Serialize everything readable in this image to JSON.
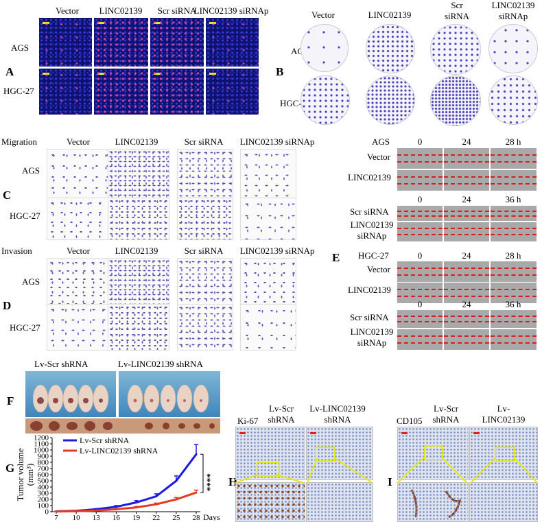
{
  "panel_letters": {
    "a": "A",
    "b": "B",
    "c": "C",
    "d": "D",
    "e": "E",
    "f": "F",
    "g": "G",
    "h": "H",
    "i": "I"
  },
  "panel_a": {
    "col_labels": [
      "Vector",
      "LINC02139",
      "Scr siRNA",
      "LINC02139 siRNAp"
    ],
    "row_labels": [
      "AGS",
      "HGC-27"
    ]
  },
  "panel_b": {
    "col_labels": [
      "Vector",
      "LINC02139",
      "Scr\nsiRNA",
      "LINC02139\nsiRNAp"
    ],
    "row_labels": [
      "AGS",
      "HGC-27"
    ]
  },
  "panel_c": {
    "title": "Migration",
    "col_labels": [
      "Vector",
      "LINC02139",
      "Scr siRNA",
      "LINC02139 siRNAp"
    ],
    "row_labels": [
      "AGS",
      "HGC-27"
    ]
  },
  "panel_d": {
    "title": "Invasion",
    "col_labels": [
      "Vector",
      "LINC02139",
      "Scr siRNA",
      "LINC02139 siRNAp"
    ],
    "row_labels": [
      "AGS",
      "HGC-27"
    ]
  },
  "panel_e": {
    "blocks": [
      {
        "cell": "AGS",
        "times": [
          "0",
          "24",
          "28 h"
        ],
        "rows": [
          "Vector",
          "LINC02139"
        ]
      },
      {
        "cell": "",
        "times": [
          "0",
          "24",
          "36 h"
        ],
        "rows": [
          "Scr siRNA",
          "LINC02139\nsiRNAp"
        ]
      },
      {
        "cell": "HGC-27",
        "times": [
          "0",
          "24",
          "28 h"
        ],
        "rows": [
          "Vector",
          "LINC02139"
        ]
      },
      {
        "cell": "",
        "times": [
          "0",
          "24",
          "36 h"
        ],
        "rows": [
          "Scr siRNA",
          "LINC02139\nsiRNAp"
        ]
      }
    ]
  },
  "panel_f": {
    "groups": [
      "Lv-Scr shRNA",
      "Lv-LINC02139 shRNA"
    ]
  },
  "panel_h": {
    "stain": "Ki-67",
    "cols": [
      "Lv-Scr\nshRNA",
      "Lv-LINC02139\nshRNA"
    ]
  },
  "panel_i": {
    "stain": "CD105",
    "cols": [
      "Lv-Scr\nshRNA",
      "Lv-LINC02139\nshRNA"
    ]
  },
  "chart_data": {
    "type": "line",
    "ylabel": "Tumor volume\n(mm³)",
    "xlabel": "Days",
    "x": [
      7,
      10,
      13,
      16,
      19,
      22,
      25,
      28
    ],
    "ylim": [
      0,
      1200
    ],
    "yticks": [
      0,
      100,
      200,
      300,
      400,
      500,
      600,
      700,
      800,
      900,
      1000,
      1100,
      1200
    ],
    "significance": "****",
    "series": [
      {
        "name": "Lv-Scr shRNA",
        "color": "#1a1ae0",
        "values": [
          5,
          15,
          40,
          80,
          150,
          250,
          500,
          930
        ],
        "errors": [
          2,
          5,
          10,
          20,
          30,
          40,
          80,
          160
        ]
      },
      {
        "name": "Lv-LINC02139 shRNA",
        "color": "#e63a20",
        "values": [
          3,
          8,
          20,
          40,
          70,
          120,
          200,
          310
        ],
        "errors": [
          1,
          3,
          5,
          10,
          15,
          20,
          30,
          40
        ]
      }
    ]
  }
}
